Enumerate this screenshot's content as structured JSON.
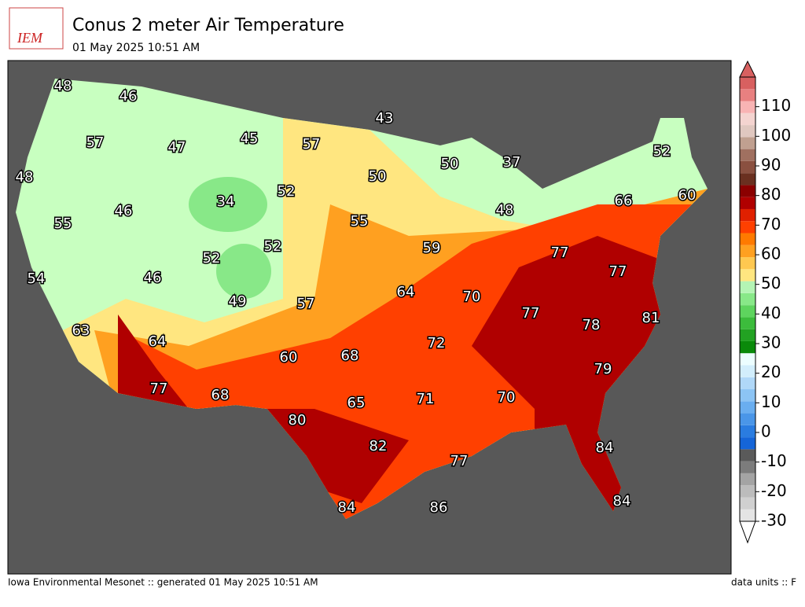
{
  "header": {
    "logo": "IEM",
    "title": "Conus 2 meter Air Temperature",
    "subtitle": "01 May 2025 10:51 AM"
  },
  "map": {
    "labels": [
      "48",
      "46",
      "43",
      "57",
      "47",
      "45",
      "57",
      "52",
      "50",
      "37",
      "48",
      "50",
      "52",
      "34",
      "66",
      "60",
      "46",
      "48",
      "55",
      "55",
      "59",
      "52",
      "52",
      "77",
      "77",
      "54",
      "46",
      "64",
      "70",
      "49",
      "57",
      "77",
      "78",
      "81",
      "63",
      "64",
      "72",
      "68",
      "60",
      "79",
      "77",
      "68",
      "71",
      "70",
      "65",
      "80",
      "82",
      "84",
      "77",
      "84",
      "84",
      "86"
    ]
  },
  "colorbar": {
    "ticks": [
      -30,
      -20,
      -10,
      0,
      10,
      20,
      30,
      40,
      50,
      60,
      70,
      80,
      90,
      100,
      110
    ],
    "range": [
      -30,
      120
    ],
    "colors": [
      "#e4e4e4",
      "#d0d0d0",
      "#bcbcbc",
      "#a4a4a4",
      "#7c7c7c",
      "#5a5a5a",
      "#1565d8",
      "#2a7ce0",
      "#4a96e8",
      "#6aaef0",
      "#8cc4f4",
      "#b0d8f8",
      "#d2eefc",
      "#ecfeff",
      "#0a8a0a",
      "#22a222",
      "#3cbc3c",
      "#5ed45e",
      "#88e888",
      "#b4f4b4",
      "#ffe680",
      "#ffc850",
      "#ffa020",
      "#ff7a00",
      "#ff4000",
      "#e02000",
      "#b00000",
      "#8b0000",
      "#6a3020",
      "#8a5040",
      "#a07060",
      "#c0a090",
      "#e0c8c0",
      "#f4d4d0",
      "#f8b4b4",
      "#e88080",
      "#d86060"
    ]
  },
  "footer": {
    "left": "Iowa Environmental Mesonet :: generated 01 May 2025 10:51 AM",
    "right": "data units :: F"
  }
}
